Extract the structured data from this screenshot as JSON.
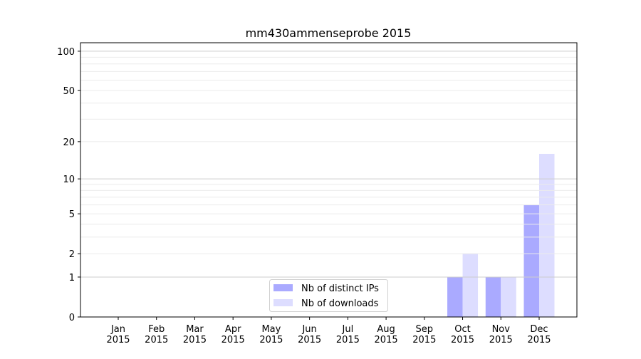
{
  "chart_data": {
    "type": "bar",
    "title": "mm430ammenseprobe 2015",
    "xlabel": "",
    "ylabel": "",
    "yscale": "log(1+y)",
    "ylim": [
      0,
      116
    ],
    "yticks": [
      0,
      1,
      2,
      5,
      10,
      20,
      50,
      100
    ],
    "grid": true,
    "legend_position": "bottom-center",
    "categories": [
      "Jan\n2015",
      "Feb\n2015",
      "Mar\n2015",
      "Apr\n2015",
      "May\n2015",
      "Jun\n2015",
      "Jul\n2015",
      "Aug\n2015",
      "Sep\n2015",
      "Oct\n2015",
      "Nov\n2015",
      "Dec\n2015"
    ],
    "series": [
      {
        "name": "Nb of distinct IPs",
        "color": "#aaaaff",
        "values": [
          0,
          0,
          0,
          0,
          0,
          0,
          0,
          0,
          0,
          1,
          1,
          6
        ]
      },
      {
        "name": "Nb of downloads",
        "color": "#ddddff",
        "values": [
          0,
          0,
          0,
          0,
          0,
          0,
          0,
          0,
          0,
          2,
          1,
          16
        ]
      }
    ]
  }
}
